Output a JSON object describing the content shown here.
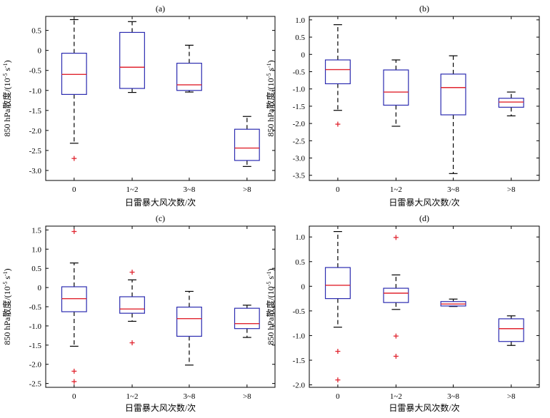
{
  "figure": {
    "ylabel_main": "850 hPa散度/(10",
    "ylabel_exp": "-5",
    "ylabel_unit": " s",
    "ylabel_exp2": "-1",
    "ylabel_close": ")",
    "xlabel": "日雷暴大风次数/次",
    "colors": {
      "box": "#2b2bb0",
      "median": "#e0242f",
      "outlier": "#e0242f",
      "whisker": "#000000"
    }
  },
  "chart_data": [
    {
      "type": "box",
      "title": "(a)",
      "categories": [
        "0",
        "1~2",
        "3~8",
        ">8"
      ],
      "ylim": [
        -3.25,
        0.85
      ],
      "yticks": [
        0.5,
        0,
        -0.5,
        -1,
        -1.5,
        -2,
        -2.5,
        -3
      ],
      "ytick_labels": [
        "0.5",
        "0",
        "-0.5",
        "-1.0",
        "-1.5",
        "-2.0",
        "-2.5",
        "-3.0"
      ],
      "boxes": [
        {
          "whislo": -2.32,
          "q1": -1.1,
          "med": -0.6,
          "q3": -0.07,
          "whishi": 0.77,
          "fliers": [
            -2.7
          ]
        },
        {
          "whislo": -1.05,
          "q1": -0.95,
          "med": -0.42,
          "q3": 0.45,
          "whishi": 0.72,
          "fliers": []
        },
        {
          "whislo": -1.04,
          "q1": -1.0,
          "med": -0.86,
          "q3": -0.32,
          "whishi": 0.13,
          "fliers": []
        },
        {
          "whislo": -2.9,
          "q1": -2.75,
          "med": -2.44,
          "q3": -1.97,
          "whishi": -1.65,
          "fliers": []
        }
      ]
    },
    {
      "type": "box",
      "title": "(b)",
      "categories": [
        "0",
        "1~2",
        "3~8",
        ">8"
      ],
      "ylim": [
        -3.65,
        1.1
      ],
      "yticks": [
        1.0,
        0.5,
        0,
        -0.5,
        -1,
        -1.5,
        -2,
        -2.5,
        -3,
        -3.5
      ],
      "ytick_labels": [
        "1.0",
        "0.5",
        "0",
        "-0.5",
        "-1.0",
        "-1.5",
        "-2.0",
        "-2.5",
        "-3.0",
        "-3.5"
      ],
      "boxes": [
        {
          "whislo": -1.62,
          "q1": -0.85,
          "med": -0.44,
          "q3": -0.16,
          "whishi": 0.86,
          "fliers": [
            -2.02
          ]
        },
        {
          "whislo": -2.08,
          "q1": -1.47,
          "med": -1.09,
          "q3": -0.45,
          "whishi": -0.16,
          "fliers": []
        },
        {
          "whislo": -3.45,
          "q1": -1.75,
          "med": -0.96,
          "q3": -0.57,
          "whishi": -0.04,
          "fliers": []
        },
        {
          "whislo": -1.78,
          "q1": -1.53,
          "med": -1.38,
          "q3": -1.27,
          "whishi": -1.09,
          "fliers": []
        }
      ]
    },
    {
      "type": "box",
      "title": "(c)",
      "categories": [
        "0",
        "1~2",
        "3~8",
        ">8"
      ],
      "ylim": [
        -2.6,
        1.6
      ],
      "yticks": [
        1.5,
        1.0,
        0.5,
        0,
        -0.5,
        -1,
        -1.5,
        -2,
        -2.5
      ],
      "ytick_labels": [
        "1.5",
        "1.0",
        "0.5",
        "0",
        "-0.5",
        "-1.0",
        "-1.5",
        "-2.0",
        "-2.5"
      ],
      "boxes": [
        {
          "whislo": -1.53,
          "q1": -0.63,
          "med": -0.29,
          "q3": 0.02,
          "whishi": 0.64,
          "fliers": [
            1.46,
            -2.18,
            -2.45
          ]
        },
        {
          "whislo": -0.88,
          "q1": -0.67,
          "med": -0.56,
          "q3": -0.24,
          "whishi": 0.2,
          "fliers": [
            0.4,
            -1.44
          ]
        },
        {
          "whislo": -2.02,
          "q1": -1.27,
          "med": -0.81,
          "q3": -0.51,
          "whishi": -0.1,
          "fliers": []
        },
        {
          "whislo": -1.3,
          "q1": -1.07,
          "med": -0.94,
          "q3": -0.54,
          "whishi": -0.46,
          "fliers": []
        }
      ]
    },
    {
      "type": "box",
      "title": "(d)",
      "categories": [
        "0",
        "1~2",
        "3~8",
        ">8"
      ],
      "ylim": [
        -2.05,
        1.22
      ],
      "yticks": [
        1.0,
        0.5,
        0,
        -0.5,
        -1,
        -1.5,
        -2
      ],
      "ytick_labels": [
        "1.0",
        "0.5",
        "0",
        "-0.5",
        "-1.0",
        "-1.5",
        "-2.0"
      ],
      "boxes": [
        {
          "whislo": -0.83,
          "q1": -0.25,
          "med": 0.02,
          "q3": 0.38,
          "whishi": 1.11,
          "fliers": [
            -1.32,
            -1.9
          ]
        },
        {
          "whislo": -0.47,
          "q1": -0.33,
          "med": -0.14,
          "q3": -0.04,
          "whishi": 0.23,
          "fliers": [
            0.99,
            -1.01,
            -1.42
          ]
        },
        {
          "whislo": -0.41,
          "q1": -0.4,
          "med": -0.36,
          "q3": -0.31,
          "whishi": -0.26,
          "fliers": []
        },
        {
          "whislo": -1.2,
          "q1": -1.12,
          "med": -0.86,
          "q3": -0.66,
          "whishi": -0.6,
          "fliers": []
        }
      ]
    }
  ]
}
